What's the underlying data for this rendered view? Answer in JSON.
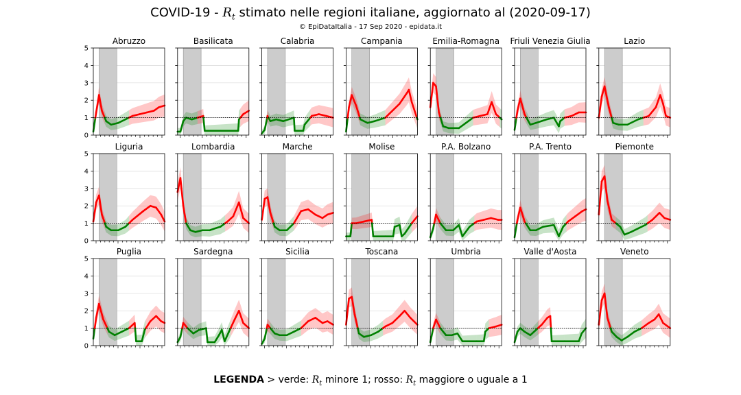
{
  "header": {
    "title_prefix": "COVID-19 - ",
    "title_symbol": "R",
    "title_symbol_sub": "t",
    "title_suffix": " stimato nelle regioni italiane, aggiornato al (2020-09-17)",
    "subtitle": "© EpiDataItalia - 17 Sep 2020 - epidata.it"
  },
  "legend": {
    "bold": "LEGENDA",
    "part1": " > verde: ",
    "sym": "R",
    "sub": "t",
    "part2": " minore 1; rosso: ",
    "part3": " maggiore o uguale a 1"
  },
  "colors": {
    "above": "#ff0000",
    "below": "#008000",
    "lockdown": "#cccccc",
    "grid": "#d9d9d9"
  },
  "chart_data": {
    "type": "line",
    "ylim": [
      0,
      5
    ],
    "yticks": [
      0,
      1,
      2,
      3,
      4,
      5
    ],
    "threshold": 1,
    "grid": true,
    "x_note": "time index 0-100, late Feb to mid Sep 2020; shaded band = lockdown (x 8 to 33)",
    "lockdown_x": [
      8,
      33
    ],
    "regions": [
      {
        "name": "Abruzzo",
        "pts": [
          [
            0,
            0.2
          ],
          [
            4,
            1.3
          ],
          [
            8,
            2.3
          ],
          [
            12,
            1.4
          ],
          [
            18,
            0.8
          ],
          [
            25,
            0.6
          ],
          [
            35,
            0.7
          ],
          [
            45,
            0.9
          ],
          [
            55,
            1.1
          ],
          [
            65,
            1.2
          ],
          [
            75,
            1.3
          ],
          [
            85,
            1.4
          ],
          [
            92,
            1.6
          ],
          [
            100,
            1.7
          ]
        ]
      },
      {
        "name": "Basilicata",
        "pts": [
          [
            0,
            0.2
          ],
          [
            4,
            0.2
          ],
          [
            8,
            0.8
          ],
          [
            12,
            1.0
          ],
          [
            20,
            0.9
          ],
          [
            28,
            1.0
          ],
          [
            36,
            1.1
          ],
          [
            38,
            0.25
          ],
          [
            60,
            0.25
          ],
          [
            85,
            0.25
          ],
          [
            86,
            0.9
          ],
          [
            92,
            1.2
          ],
          [
            100,
            1.4
          ]
        ]
      },
      {
        "name": "Calabria",
        "pts": [
          [
            0,
            0.1
          ],
          [
            4,
            0.3
          ],
          [
            8,
            1.1
          ],
          [
            12,
            0.8
          ],
          [
            20,
            0.9
          ],
          [
            30,
            0.8
          ],
          [
            45,
            1.0
          ],
          [
            46,
            0.25
          ],
          [
            58,
            0.25
          ],
          [
            60,
            0.6
          ],
          [
            70,
            1.1
          ],
          [
            80,
            1.2
          ],
          [
            90,
            1.1
          ],
          [
            100,
            1.0
          ]
        ]
      },
      {
        "name": "Campania",
        "pts": [
          [
            0,
            0.2
          ],
          [
            4,
            1.6
          ],
          [
            8,
            2.3
          ],
          [
            14,
            1.7
          ],
          [
            20,
            0.9
          ],
          [
            30,
            0.7
          ],
          [
            40,
            0.8
          ],
          [
            55,
            1.0
          ],
          [
            65,
            1.4
          ],
          [
            75,
            1.8
          ],
          [
            85,
            2.4
          ],
          [
            88,
            2.6
          ],
          [
            92,
            1.9
          ],
          [
            100,
            0.9
          ]
        ]
      },
      {
        "name": "Emilia-Romagna",
        "pts": [
          [
            0,
            1.6
          ],
          [
            4,
            3.0
          ],
          [
            8,
            2.8
          ],
          [
            12,
            1.3
          ],
          [
            18,
            0.5
          ],
          [
            26,
            0.4
          ],
          [
            40,
            0.4
          ],
          [
            50,
            0.7
          ],
          [
            60,
            1.0
          ],
          [
            70,
            1.1
          ],
          [
            80,
            1.2
          ],
          [
            86,
            1.9
          ],
          [
            92,
            1.2
          ],
          [
            100,
            0.9
          ]
        ]
      },
      {
        "name": "Friuli Venezia Giulia",
        "pts": [
          [
            0,
            0.3
          ],
          [
            4,
            1.4
          ],
          [
            8,
            2.1
          ],
          [
            14,
            1.2
          ],
          [
            22,
            0.6
          ],
          [
            30,
            0.7
          ],
          [
            45,
            0.9
          ],
          [
            55,
            1.0
          ],
          [
            62,
            0.5
          ],
          [
            64,
            0.8
          ],
          [
            70,
            1.0
          ],
          [
            80,
            1.1
          ],
          [
            90,
            1.3
          ],
          [
            100,
            1.3
          ]
        ]
      },
      {
        "name": "Lazio",
        "pts": [
          [
            0,
            1.0
          ],
          [
            4,
            2.2
          ],
          [
            8,
            2.8
          ],
          [
            14,
            1.6
          ],
          [
            20,
            0.7
          ],
          [
            28,
            0.6
          ],
          [
            40,
            0.6
          ],
          [
            55,
            0.9
          ],
          [
            70,
            1.1
          ],
          [
            80,
            1.6
          ],
          [
            86,
            2.3
          ],
          [
            90,
            1.8
          ],
          [
            94,
            1.1
          ],
          [
            100,
            1.0
          ]
        ]
      },
      {
        "name": "Liguria",
        "pts": [
          [
            0,
            1.1
          ],
          [
            4,
            2.2
          ],
          [
            8,
            2.6
          ],
          [
            12,
            1.5
          ],
          [
            18,
            0.8
          ],
          [
            25,
            0.6
          ],
          [
            35,
            0.6
          ],
          [
            45,
            0.8
          ],
          [
            55,
            1.2
          ],
          [
            70,
            1.7
          ],
          [
            80,
            2.0
          ],
          [
            88,
            1.9
          ],
          [
            95,
            1.5
          ],
          [
            100,
            1.1
          ]
        ]
      },
      {
        "name": "Lombardia",
        "pts": [
          [
            0,
            2.8
          ],
          [
            4,
            3.6
          ],
          [
            8,
            2.0
          ],
          [
            12,
            1.0
          ],
          [
            18,
            0.6
          ],
          [
            25,
            0.5
          ],
          [
            35,
            0.6
          ],
          [
            45,
            0.6
          ],
          [
            52,
            0.7
          ],
          [
            60,
            0.8
          ],
          [
            70,
            1.1
          ],
          [
            78,
            1.4
          ],
          [
            86,
            2.2
          ],
          [
            92,
            1.3
          ],
          [
            100,
            1.0
          ]
        ]
      },
      {
        "name": "Marche",
        "pts": [
          [
            0,
            1.2
          ],
          [
            4,
            2.4
          ],
          [
            8,
            2.5
          ],
          [
            12,
            1.6
          ],
          [
            18,
            0.8
          ],
          [
            25,
            0.6
          ],
          [
            35,
            0.6
          ],
          [
            45,
            1.0
          ],
          [
            55,
            1.7
          ],
          [
            65,
            1.8
          ],
          [
            75,
            1.5
          ],
          [
            85,
            1.3
          ],
          [
            92,
            1.5
          ],
          [
            100,
            1.6
          ]
        ]
      },
      {
        "name": "Molise",
        "pts": [
          [
            0,
            0.25
          ],
          [
            6,
            0.25
          ],
          [
            8,
            1.0
          ],
          [
            14,
            1.0
          ],
          [
            25,
            1.1
          ],
          [
            36,
            1.2
          ],
          [
            38,
            0.25
          ],
          [
            55,
            0.25
          ],
          [
            66,
            0.25
          ],
          [
            68,
            0.8
          ],
          [
            75,
            0.9
          ],
          [
            78,
            0.25
          ],
          [
            82,
            0.4
          ],
          [
            92,
            1.0
          ],
          [
            100,
            1.4
          ]
        ]
      },
      {
        "name": "P.A. Bolzano",
        "pts": [
          [
            0,
            0.2
          ],
          [
            4,
            0.7
          ],
          [
            8,
            1.5
          ],
          [
            14,
            1.0
          ],
          [
            22,
            0.6
          ],
          [
            32,
            0.6
          ],
          [
            40,
            0.9
          ],
          [
            45,
            0.25
          ],
          [
            55,
            0.8
          ],
          [
            65,
            1.1
          ],
          [
            75,
            1.2
          ],
          [
            85,
            1.3
          ],
          [
            95,
            1.2
          ],
          [
            100,
            1.2
          ]
        ]
      },
      {
        "name": "P.A. Trento",
        "pts": [
          [
            0,
            0.2
          ],
          [
            4,
            1.2
          ],
          [
            8,
            1.9
          ],
          [
            14,
            1.1
          ],
          [
            22,
            0.6
          ],
          [
            30,
            0.6
          ],
          [
            40,
            0.8
          ],
          [
            55,
            0.9
          ],
          [
            62,
            0.25
          ],
          [
            68,
            0.8
          ],
          [
            75,
            1.1
          ],
          [
            85,
            1.4
          ],
          [
            95,
            1.7
          ],
          [
            100,
            1.8
          ]
        ]
      },
      {
        "name": "Piemonte",
        "pts": [
          [
            0,
            1.5
          ],
          [
            4,
            3.4
          ],
          [
            8,
            3.7
          ],
          [
            12,
            2.3
          ],
          [
            18,
            1.2
          ],
          [
            24,
            1.0
          ],
          [
            30,
            0.8
          ],
          [
            36,
            0.35
          ],
          [
            45,
            0.5
          ],
          [
            55,
            0.7
          ],
          [
            65,
            0.9
          ],
          [
            75,
            1.2
          ],
          [
            85,
            1.6
          ],
          [
            92,
            1.3
          ],
          [
            100,
            1.2
          ]
        ]
      },
      {
        "name": "Puglia",
        "pts": [
          [
            0,
            0.4
          ],
          [
            4,
            1.6
          ],
          [
            8,
            2.4
          ],
          [
            14,
            1.5
          ],
          [
            22,
            0.8
          ],
          [
            30,
            0.6
          ],
          [
            40,
            0.8
          ],
          [
            50,
            1.0
          ],
          [
            58,
            1.3
          ],
          [
            60,
            0.25
          ],
          [
            68,
            0.25
          ],
          [
            72,
            0.9
          ],
          [
            80,
            1.4
          ],
          [
            88,
            1.7
          ],
          [
            95,
            1.4
          ],
          [
            100,
            1.3
          ]
        ]
      },
      {
        "name": "Sardegna",
        "pts": [
          [
            0,
            0.2
          ],
          [
            4,
            0.5
          ],
          [
            8,
            1.3
          ],
          [
            14,
            1.0
          ],
          [
            22,
            0.7
          ],
          [
            30,
            0.9
          ],
          [
            40,
            1.0
          ],
          [
            42,
            0.2
          ],
          [
            52,
            0.2
          ],
          [
            58,
            0.6
          ],
          [
            62,
            0.9
          ],
          [
            66,
            0.25
          ],
          [
            72,
            0.8
          ],
          [
            80,
            1.5
          ],
          [
            86,
            2.0
          ],
          [
            92,
            1.3
          ],
          [
            100,
            1.0
          ]
        ]
      },
      {
        "name": "Sicilia",
        "pts": [
          [
            0,
            0.1
          ],
          [
            4,
            0.4
          ],
          [
            8,
            1.2
          ],
          [
            12,
            1.0
          ],
          [
            18,
            0.7
          ],
          [
            25,
            0.6
          ],
          [
            35,
            0.6
          ],
          [
            45,
            0.8
          ],
          [
            55,
            1.0
          ],
          [
            65,
            1.4
          ],
          [
            75,
            1.6
          ],
          [
            85,
            1.3
          ],
          [
            92,
            1.4
          ],
          [
            100,
            1.2
          ]
        ]
      },
      {
        "name": "Toscana",
        "pts": [
          [
            0,
            1.2
          ],
          [
            4,
            2.7
          ],
          [
            8,
            2.8
          ],
          [
            12,
            1.8
          ],
          [
            18,
            0.7
          ],
          [
            25,
            0.5
          ],
          [
            35,
            0.6
          ],
          [
            45,
            0.8
          ],
          [
            55,
            1.1
          ],
          [
            65,
            1.3
          ],
          [
            75,
            1.7
          ],
          [
            82,
            2.0
          ],
          [
            90,
            1.6
          ],
          [
            100,
            1.2
          ]
        ]
      },
      {
        "name": "Umbria",
        "pts": [
          [
            0,
            0.2
          ],
          [
            4,
            1.0
          ],
          [
            8,
            1.5
          ],
          [
            14,
            1.0
          ],
          [
            22,
            0.6
          ],
          [
            30,
            0.6
          ],
          [
            38,
            0.7
          ],
          [
            45,
            0.25
          ],
          [
            65,
            0.25
          ],
          [
            75,
            0.25
          ],
          [
            77,
            0.8
          ],
          [
            82,
            1.0
          ],
          [
            92,
            1.1
          ],
          [
            100,
            1.2
          ]
        ]
      },
      {
        "name": "Valle d'Aosta",
        "pts": [
          [
            0,
            0.2
          ],
          [
            4,
            0.8
          ],
          [
            8,
            1.0
          ],
          [
            14,
            0.8
          ],
          [
            22,
            0.6
          ],
          [
            30,
            0.9
          ],
          [
            38,
            1.2
          ],
          [
            46,
            1.6
          ],
          [
            50,
            1.7
          ],
          [
            52,
            0.25
          ],
          [
            70,
            0.25
          ],
          [
            90,
            0.25
          ],
          [
            94,
            0.7
          ],
          [
            100,
            1.0
          ]
        ]
      },
      {
        "name": "Veneto",
        "pts": [
          [
            0,
            1.2
          ],
          [
            4,
            2.6
          ],
          [
            8,
            3.0
          ],
          [
            12,
            1.6
          ],
          [
            18,
            0.8
          ],
          [
            25,
            0.5
          ],
          [
            32,
            0.3
          ],
          [
            40,
            0.5
          ],
          [
            50,
            0.8
          ],
          [
            60,
            1.0
          ],
          [
            70,
            1.3
          ],
          [
            78,
            1.5
          ],
          [
            84,
            1.8
          ],
          [
            90,
            1.3
          ],
          [
            100,
            1.0
          ]
        ]
      }
    ]
  }
}
